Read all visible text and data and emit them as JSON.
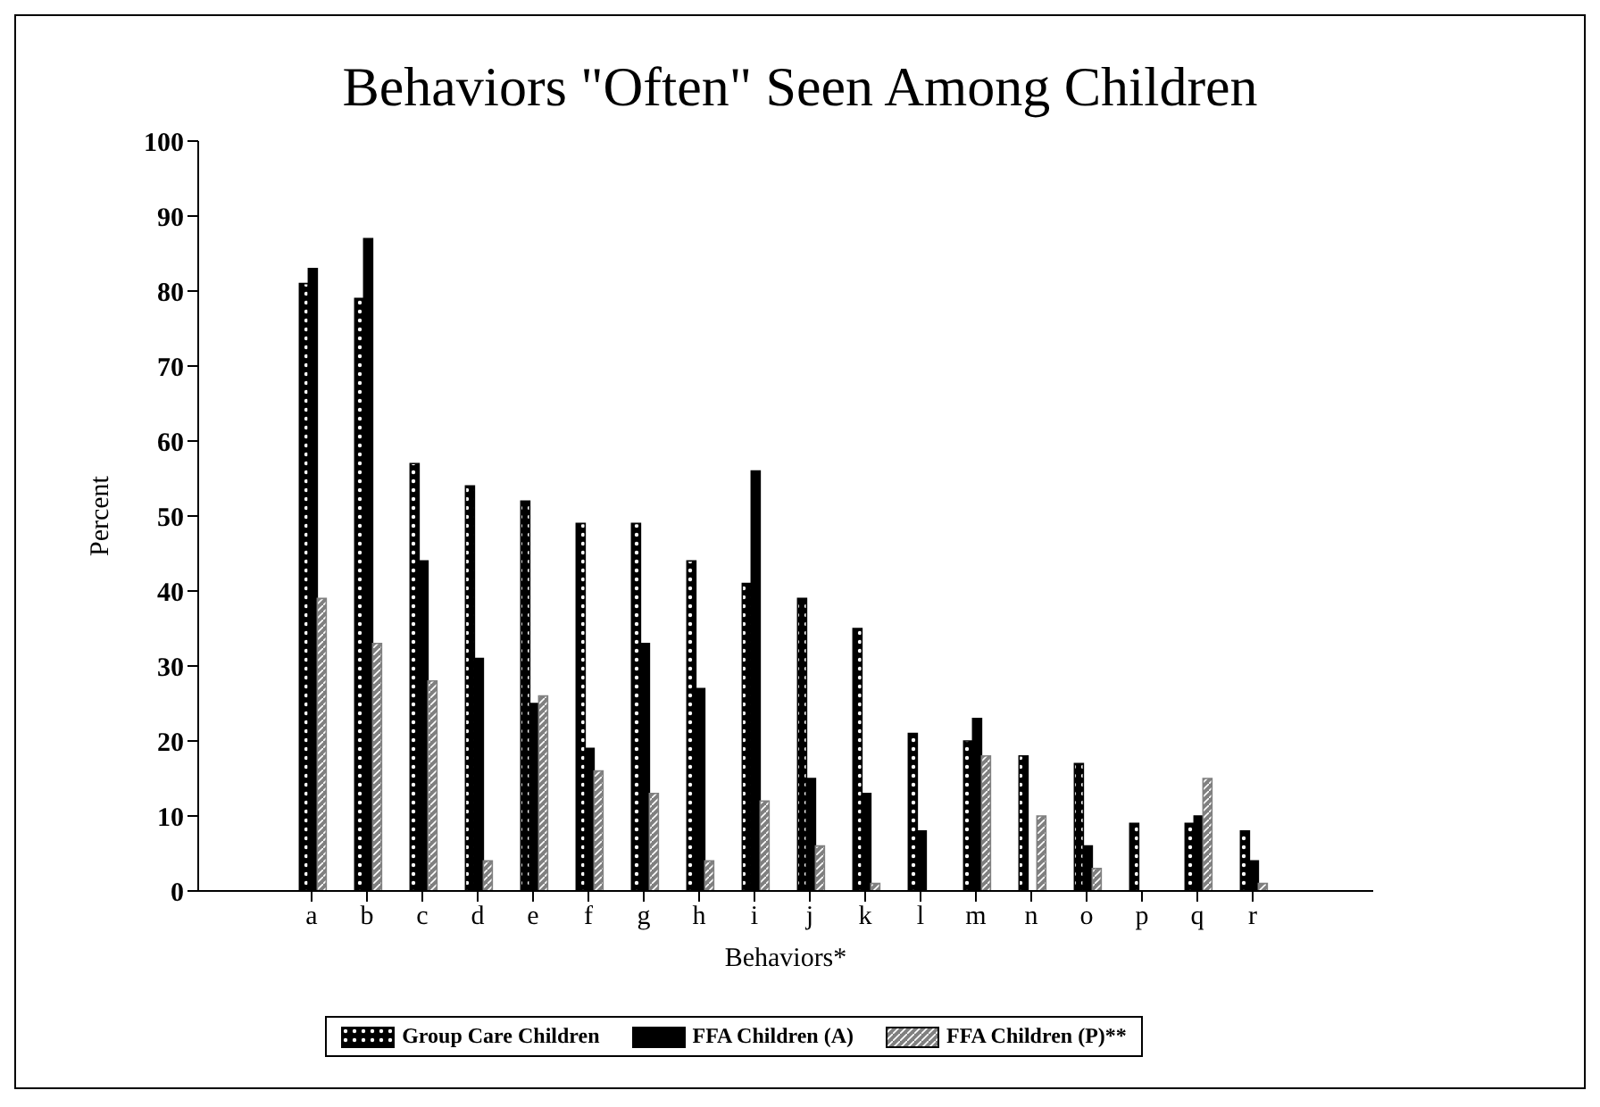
{
  "chart_data": {
    "type": "bar",
    "title": "Behaviors \"Often\" Seen Among Children",
    "xlabel": "Behaviors*",
    "ylabel": "Percent",
    "categories": [
      "a",
      "b",
      "c",
      "d",
      "e",
      "f",
      "g",
      "h",
      "i",
      "j",
      "k",
      "l",
      "m",
      "n",
      "o",
      "p",
      "q",
      "r"
    ],
    "series": [
      {
        "name": "Group Care Children",
        "color": "#000000",
        "values": [
          81,
          79,
          57,
          54,
          52,
          49,
          49,
          44,
          41,
          39,
          35,
          21,
          20,
          18,
          17,
          9,
          9,
          8
        ]
      },
      {
        "name": "FFA Children (A)",
        "color": "#000000",
        "values": [
          83,
          87,
          44,
          31,
          25,
          19,
          33,
          27,
          56,
          15,
          13,
          8,
          23,
          0,
          6,
          0,
          10,
          4
        ]
      },
      {
        "name": "FFA Children (P)**",
        "color": "#808080",
        "values": [
          39,
          33,
          28,
          4,
          26,
          16,
          13,
          4,
          12,
          6,
          1,
          0,
          18,
          10,
          3,
          0,
          15,
          1
        ]
      }
    ],
    "ylim": [
      0,
      100
    ],
    "yticks": [
      0,
      10,
      20,
      30,
      40,
      50,
      60,
      70,
      80,
      90,
      100
    ],
    "grid": false,
    "legend": "bottom"
  }
}
